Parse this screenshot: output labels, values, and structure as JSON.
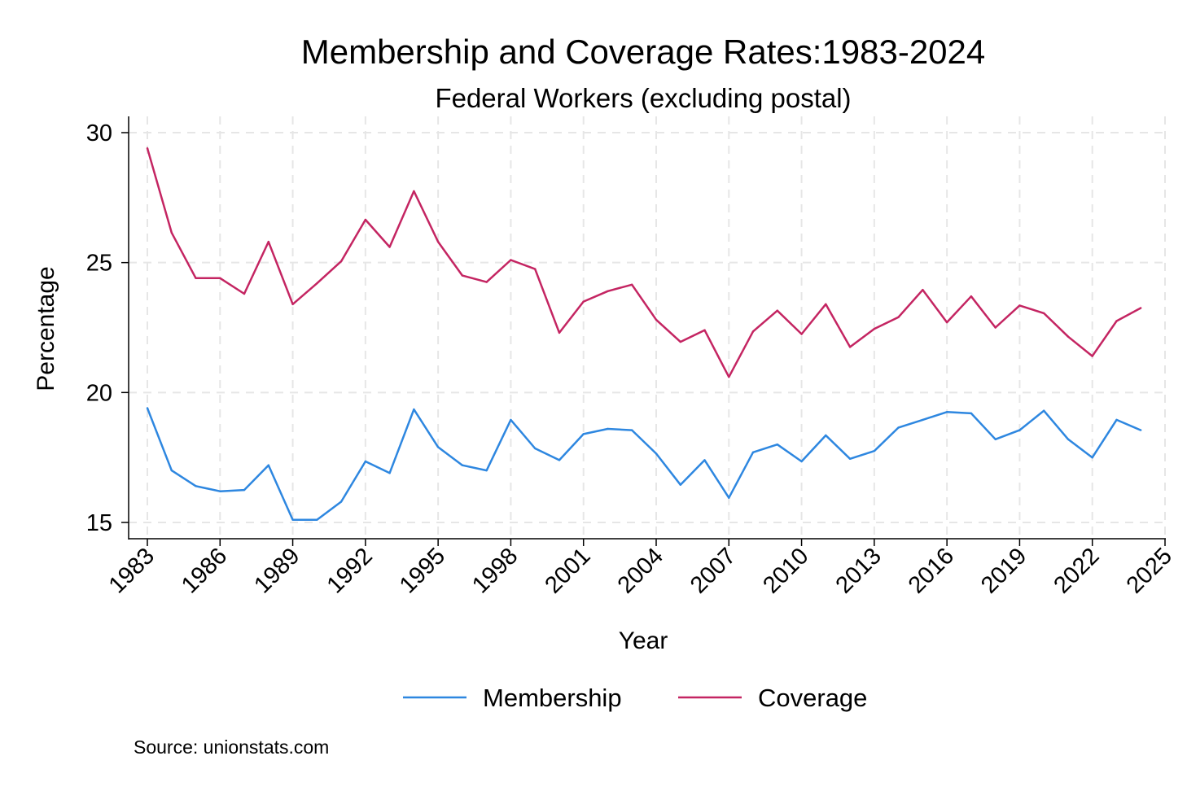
{
  "chart_data": {
    "type": "line",
    "title": "Membership and Coverage Rates:1983-2024",
    "subtitle": "Federal Workers (excluding postal)",
    "xlabel": "Year",
    "ylabel": "Percentage",
    "note": "Source: unionstats.com",
    "xlim": [
      1983,
      2025
    ],
    "ylim": [
      15,
      30
    ],
    "x_ticks": [
      1983,
      1986,
      1989,
      1992,
      1995,
      1998,
      2001,
      2004,
      2007,
      2010,
      2013,
      2016,
      2019,
      2022,
      2025
    ],
    "x_tick_labels": [
      "1983",
      "1986",
      "1989",
      "1992",
      "1995",
      "1998",
      "2001",
      "2004",
      "2007",
      "2010",
      "2013",
      "2016",
      "2019",
      "2022",
      "2025"
    ],
    "y_ticks": [
      15,
      20,
      25,
      30
    ],
    "y_tick_labels": [
      "15",
      "20",
      "25",
      "30"
    ],
    "grid": true,
    "legend_position": "bottom",
    "x": [
      1983,
      1984,
      1985,
      1986,
      1987,
      1988,
      1989,
      1990,
      1991,
      1992,
      1993,
      1994,
      1995,
      1996,
      1997,
      1998,
      1999,
      2000,
      2001,
      2002,
      2003,
      2004,
      2005,
      2006,
      2007,
      2008,
      2009,
      2010,
      2011,
      2012,
      2013,
      2014,
      2015,
      2016,
      2017,
      2018,
      2019,
      2020,
      2021,
      2022,
      2023,
      2024
    ],
    "series": [
      {
        "name": "Membership",
        "color": "#2e87e0",
        "values": [
          19.4,
          17.0,
          16.4,
          16.2,
          16.25,
          17.2,
          15.1,
          15.1,
          15.8,
          17.35,
          16.9,
          19.35,
          17.9,
          17.2,
          17.0,
          18.95,
          17.85,
          17.4,
          18.4,
          18.6,
          18.55,
          17.65,
          16.45,
          17.4,
          15.95,
          17.7,
          18.0,
          17.35,
          18.35,
          17.45,
          17.75,
          18.65,
          18.95,
          19.25,
          19.2,
          18.2,
          18.55,
          19.3,
          18.2,
          17.5,
          18.95,
          18.55
        ]
      },
      {
        "name": "Coverage",
        "color": "#c42562",
        "values": [
          29.4,
          26.15,
          24.4,
          24.4,
          23.8,
          25.8,
          23.4,
          24.2,
          25.05,
          26.65,
          25.6,
          27.75,
          25.8,
          24.5,
          24.25,
          25.1,
          24.75,
          22.3,
          23.5,
          23.9,
          24.15,
          22.8,
          21.95,
          22.4,
          20.6,
          22.35,
          23.15,
          22.25,
          23.4,
          21.75,
          22.45,
          22.9,
          23.95,
          22.7,
          23.7,
          22.5,
          23.35,
          23.05,
          22.15,
          21.4,
          22.75,
          23.25
        ]
      }
    ]
  }
}
